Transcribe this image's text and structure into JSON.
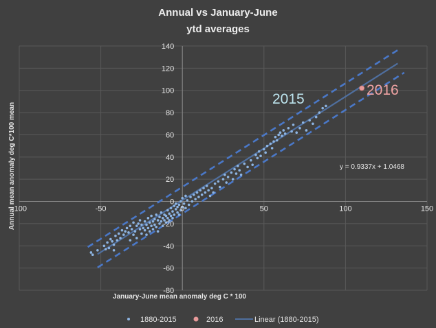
{
  "chart_data": {
    "type": "scatter",
    "title_line1": "Annual vs  January-June",
    "title_line2": "ytd averages",
    "xlabel": "January-June mean anomaly deg C * 100",
    "ylabel": "Annual mean  anomaly deg C*100 mean",
    "xlim": [
      -100,
      150
    ],
    "ylim": [
      -80,
      140
    ],
    "x_ticks": [
      -100,
      -50,
      0,
      50,
      100,
      150
    ],
    "y_ticks": [
      -80,
      -60,
      -40,
      -20,
      0,
      20,
      40,
      60,
      80,
      100,
      120,
      140
    ],
    "gridlines": true,
    "legend_position": "bottom",
    "colors": {
      "background": "#404040",
      "grid": "#595959",
      "points": "#8db4e2",
      "point_2016": "#e89a9a",
      "label_2016": "#f0a3a3",
      "label_2015": "#bde4ee",
      "trend": "#4f6f9f",
      "bands": "#4a78c8",
      "text": "#e6e6e6"
    },
    "series": [
      {
        "name": "1880-2015",
        "points": [
          [
            -56,
            -46
          ],
          [
            -55,
            -48
          ],
          [
            -52,
            -44
          ],
          [
            -48,
            -40
          ],
          [
            -47,
            -43
          ],
          [
            -46,
            -37
          ],
          [
            -45,
            -42
          ],
          [
            -44,
            -34
          ],
          [
            -43,
            -36
          ],
          [
            -42,
            -44
          ],
          [
            -42,
            -39
          ],
          [
            -41,
            -31
          ],
          [
            -40,
            -35
          ],
          [
            -39,
            -29
          ],
          [
            -38,
            -33
          ],
          [
            -37,
            -26
          ],
          [
            -36,
            -30
          ],
          [
            -35,
            -27
          ],
          [
            -34,
            -24
          ],
          [
            -33,
            -28
          ],
          [
            -32,
            -35
          ],
          [
            -32,
            -22
          ],
          [
            -31,
            -25
          ],
          [
            -30,
            -30
          ],
          [
            -30,
            -19
          ],
          [
            -29,
            -27
          ],
          [
            -28,
            -22
          ],
          [
            -28,
            -33
          ],
          [
            -27,
            -20
          ],
          [
            -26,
            -25
          ],
          [
            -26,
            -17
          ],
          [
            -25,
            -29
          ],
          [
            -25,
            -21
          ],
          [
            -24,
            -24
          ],
          [
            -23,
            -18
          ],
          [
            -23,
            -26
          ],
          [
            -22,
            -21
          ],
          [
            -22,
            -30
          ],
          [
            -21,
            -15
          ],
          [
            -21,
            -24
          ],
          [
            -20,
            -19
          ],
          [
            -20,
            -27
          ],
          [
            -19,
            -22
          ],
          [
            -19,
            -13
          ],
          [
            -18,
            -18
          ],
          [
            -18,
            -25
          ],
          [
            -17,
            -16
          ],
          [
            -17,
            -21
          ],
          [
            -16,
            -12
          ],
          [
            -16,
            -23
          ],
          [
            -15,
            -17
          ],
          [
            -15,
            -27
          ],
          [
            -14,
            -14
          ],
          [
            -14,
            -20
          ],
          [
            -13,
            -18
          ],
          [
            -13,
            -10
          ],
          [
            -12,
            -15
          ],
          [
            -12,
            -22
          ],
          [
            -11,
            -12
          ],
          [
            -11,
            -17
          ],
          [
            -10,
            -13
          ],
          [
            -10,
            -19
          ],
          [
            -9,
            -8
          ],
          [
            -9,
            -15
          ],
          [
            -8,
            -11
          ],
          [
            -8,
            -17
          ],
          [
            -7,
            -6
          ],
          [
            -7,
            -13
          ],
          [
            -6,
            -9
          ],
          [
            -6,
            -15
          ],
          [
            -5,
            -4
          ],
          [
            -5,
            -12
          ],
          [
            -4,
            -7
          ],
          [
            -4,
            -2
          ],
          [
            -3,
            -10
          ],
          [
            -3,
            -5
          ],
          [
            -2,
            -12
          ],
          [
            -2,
            -3
          ],
          [
            -1,
            -8
          ],
          [
            -1,
            0
          ],
          [
            0,
            -5
          ],
          [
            0,
            3
          ],
          [
            1,
            -2
          ],
          [
            2,
            -6
          ],
          [
            2,
            5
          ],
          [
            3,
            1
          ],
          [
            4,
            -3
          ],
          [
            5,
            4
          ],
          [
            6,
            0
          ],
          [
            7,
            6
          ],
          [
            8,
            2
          ],
          [
            9,
            8
          ],
          [
            10,
            4
          ],
          [
            11,
            10
          ],
          [
            12,
            6
          ],
          [
            13,
            12
          ],
          [
            14,
            8
          ],
          [
            15,
            14
          ],
          [
            16,
            10
          ],
          [
            17,
            5
          ],
          [
            18,
            12
          ],
          [
            19,
            8
          ],
          [
            20,
            16
          ],
          [
            22,
            18
          ],
          [
            23,
            13
          ],
          [
            25,
            20
          ],
          [
            26,
            24
          ],
          [
            27,
            17
          ],
          [
            28,
            22
          ],
          [
            30,
            26
          ],
          [
            31,
            20
          ],
          [
            32,
            29
          ],
          [
            33,
            25
          ],
          [
            34,
            32
          ],
          [
            35,
            28
          ],
          [
            36,
            24
          ],
          [
            38,
            34
          ],
          [
            40,
            31
          ],
          [
            42,
            37
          ],
          [
            43,
            33
          ],
          [
            45,
            42
          ],
          [
            46,
            39
          ],
          [
            47,
            45
          ],
          [
            48,
            41
          ],
          [
            50,
            47
          ],
          [
            51,
            44
          ],
          [
            52,
            50
          ],
          [
            54,
            52
          ],
          [
            55,
            48
          ],
          [
            56,
            54
          ],
          [
            57,
            58
          ],
          [
            58,
            55
          ],
          [
            59,
            60
          ],
          [
            60,
            62
          ],
          [
            61,
            59
          ],
          [
            62,
            64
          ],
          [
            63,
            61
          ],
          [
            65,
            66
          ],
          [
            67,
            63
          ],
          [
            68,
            69
          ],
          [
            70,
            62
          ],
          [
            72,
            66
          ],
          [
            74,
            71
          ],
          [
            76,
            64
          ],
          [
            78,
            73
          ],
          [
            80,
            70
          ],
          [
            82,
            76
          ],
          [
            84,
            80
          ],
          [
            86,
            84
          ],
          [
            88,
            86
          ]
        ]
      },
      {
        "name": "2016",
        "points": [
          [
            110,
            102
          ]
        ]
      },
      {
        "name": "Linear (1880-2015)",
        "slope": 0.9337,
        "intercept": 1.0468,
        "x_range": [
          -52,
          132
        ]
      },
      {
        "name": "upper band",
        "offset": 12,
        "x_range": [
          -58,
          132
        ]
      },
      {
        "name": "lower band",
        "offset": -12,
        "x_range": [
          -52,
          136
        ]
      }
    ],
    "annotations": {
      "label_2015": "2015",
      "label_2016": "2016",
      "equation": "y = 0.9337x + 1.0468"
    }
  }
}
